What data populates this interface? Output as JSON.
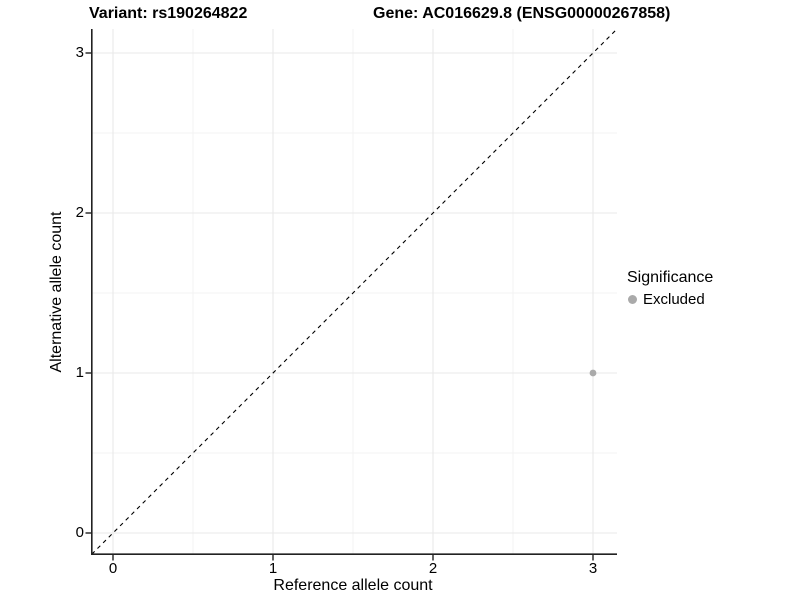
{
  "chart_data": {
    "type": "scatter",
    "titles": {
      "left": "Variant: rs190264822",
      "right": "Gene: AC016629.8 (ENSG00000267858)"
    },
    "xlabel": "Reference allele count",
    "ylabel": "Alternative allele count",
    "xlim": [
      -0.1375,
      3.1375
    ],
    "ylim": [
      -0.1375,
      3.1375
    ],
    "x_ticks": [
      0,
      1,
      2,
      3
    ],
    "y_ticks": [
      0,
      1,
      2,
      3
    ],
    "x_minor_ticks": [
      0.5,
      1.5,
      2.5
    ],
    "y_minor_ticks": [
      0.5,
      1.5,
      2.5
    ],
    "grid": true,
    "reference_line": {
      "type": "identity",
      "equation": "y = x",
      "style": "dashed",
      "color": "#000000"
    },
    "series": [
      {
        "name": "Excluded",
        "color": "#aaaaaa",
        "points": [
          {
            "x": 3,
            "y": 1
          }
        ]
      }
    ],
    "legend": {
      "title": "Significance",
      "position": "right",
      "entries": [
        {
          "label": "Excluded",
          "color": "#aaaaaa"
        }
      ]
    },
    "colors": {
      "background": "#ffffff",
      "axis": "#222222",
      "tick": "#222222",
      "grid_major": "#e9e9e9",
      "grid_minor": "#f3f3f3",
      "text": "#000000",
      "excluded_point": "#aaaaaa"
    }
  }
}
